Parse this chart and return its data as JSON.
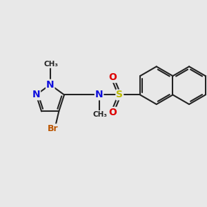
{
  "bg_color": "#e8e8e8",
  "bond_color": "#222222",
  "bond_width": 1.5,
  "atom_colors": {
    "N": "#1010dd",
    "Br": "#bb5500",
    "S": "#bbbb00",
    "O": "#dd0000",
    "C": "#222222"
  },
  "figsize": [
    3.0,
    3.0
  ],
  "dpi": 100,
  "xlim": [
    0,
    10
  ],
  "ylim": [
    0,
    10
  ]
}
